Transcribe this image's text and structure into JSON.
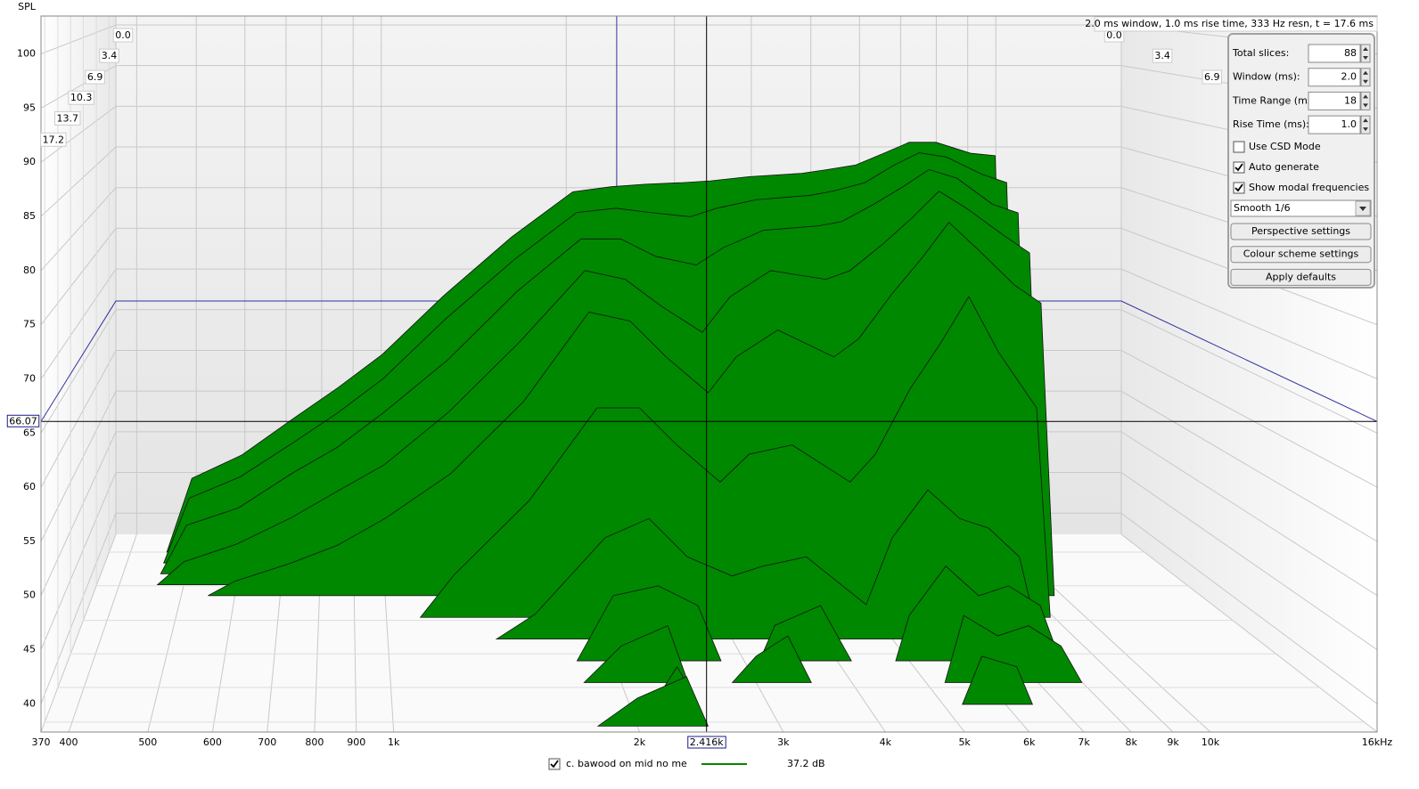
{
  "chart_data": {
    "type": "waterfall",
    "y_label": "SPL",
    "info": "2.0 ms window, 1.0 ms rise time,  333 Hz resn, t = 17.6 ms",
    "xscale": "log",
    "xlim": [
      370,
      16000
    ],
    "xticks": [
      370,
      400,
      500,
      600,
      700,
      800,
      900,
      {
        "value": 1000,
        "label": "1k"
      },
      {
        "value": 2000,
        "label": "2k"
      },
      {
        "value": 3000,
        "label": "3k"
      },
      {
        "value": 4000,
        "label": "4k"
      },
      {
        "value": 5000,
        "label": "5k"
      },
      {
        "value": 6000,
        "label": "6k"
      },
      {
        "value": 7000,
        "label": "7k"
      },
      {
        "value": 8000,
        "label": "8k"
      },
      {
        "value": 9000,
        "label": "9k"
      },
      {
        "value": 10000,
        "label": "10k"
      },
      {
        "value": 16000,
        "label": "16kHz"
      }
    ],
    "ylim": [
      37.4,
      103.5
    ],
    "yticks": [
      40,
      45,
      50,
      55,
      60,
      65,
      70,
      75,
      80,
      85,
      90,
      95,
      100
    ],
    "tlim": [
      0,
      17.6
    ],
    "tticks": [
      {
        "value": 0,
        "label": "0.0"
      },
      3.4,
      6.9,
      10.3,
      13.7,
      17.2
    ],
    "grid": true,
    "cursor": {
      "x": {
        "value": 2416,
        "label": "2.416k"
      },
      "y": 66.07
    },
    "x": [
      500,
      600,
      725,
      850,
      1000,
      1250,
      1600,
      2000,
      2300,
      2600,
      3000,
      3300,
      3800,
      4600,
      5000,
      5600,
      6200,
      6800,
      7500,
      8500,
      9300
    ],
    "series": [
      {
        "name": "c. bawood on mid no me",
        "color": "#008800",
        "visible": true,
        "level": {
          "value": 37.2,
          "label": "37.2 dB"
        },
        "slices": [
          {
            "t": 0,
            "values": [
              46.2,
              49,
              53.4,
              57,
              61,
              68,
              75,
              80.4,
              81,
              81.3,
              81.5,
              81.7,
              82.2,
              82.6,
              83,
              83.6,
              85,
              86.3,
              86.3,
              85,
              84.7
            ]
          },
          {
            "t": 1.1,
            "values": [
              45,
              47.5,
              51.5,
              55,
              59,
              66,
              73,
              78.5,
              79,
              78.5,
              78,
              79,
              80,
              80.5,
              81,
              82,
              84,
              85.5,
              85,
              83,
              82
            ]
          },
          {
            "t": 2.2,
            "values": [
              43,
              45,
              49,
              52,
              56,
              62,
              70,
              76,
              76,
              74,
              73,
              75,
              77,
              77.5,
              78,
              80,
              82,
              84,
              83,
              80,
              79
            ]
          },
          {
            "t": 3.3,
            "values": [
              40,
              42,
              45,
              48,
              51,
              57,
              65,
              73,
              72,
              69,
              66,
              70,
              73,
              72,
              73,
              76,
              79,
              82,
              80,
              77,
              75
            ]
          },
          {
            "t": 4.4,
            "values": [
              null,
              39,
              41,
              43,
              46,
              51,
              59,
              69,
              68,
              64,
              60,
              64,
              67,
              64,
              66,
              71,
              75,
              79,
              76,
              72,
              70
            ]
          },
          {
            "t": 6.6,
            "values": [
              null,
              null,
              null,
              null,
              null,
              42,
              50,
              60,
              60,
              56,
              52,
              55,
              56,
              52,
              55,
              62,
              67,
              72,
              66,
              60,
              null
            ]
          },
          {
            "t": 8.8,
            "values": [
              null,
              null,
              null,
              null,
              null,
              null,
              40,
              48,
              50,
              46,
              44,
              45,
              46,
              41,
              48,
              53,
              50,
              49,
              46,
              null,
              null
            ]
          },
          {
            "t": 11,
            "values": [
              null,
              null,
              null,
              null,
              null,
              null,
              null,
              44,
              45,
              43,
              null,
              41,
              43,
              null,
              42,
              47,
              44,
              45,
              43,
              null,
              null
            ]
          },
          {
            "t": 13.2,
            "values": [
              null,
              null,
              null,
              null,
              null,
              null,
              null,
              41,
              43,
              null,
              40,
              42,
              null,
              null,
              null,
              44,
              42,
              43,
              41,
              null,
              null
            ]
          },
          {
            "t": 15.4,
            "values": [
              null,
              null,
              null,
              null,
              null,
              null,
              null,
              null,
              41,
              null,
              null,
              null,
              null,
              null,
              null,
              42,
              41,
              null,
              null,
              null,
              null
            ]
          },
          {
            "t": 17.6,
            "values": [
              null,
              null,
              null,
              null,
              null,
              null,
              null,
              40,
              42,
              null,
              null,
              null,
              null,
              null,
              null,
              null,
              null,
              null,
              null,
              null,
              null
            ]
          }
        ]
      }
    ]
  },
  "controls": {
    "fields": [
      {
        "label": "Total slices:",
        "value": "88"
      },
      {
        "label": "Window (ms):",
        "value": "2.0"
      },
      {
        "label": "Time Range (ms):",
        "value": "18"
      },
      {
        "label": "Rise Time (ms):",
        "value": "1.0"
      }
    ],
    "checkboxes": [
      {
        "label": "Use CSD Mode",
        "checked": false
      },
      {
        "label": "Auto generate",
        "checked": true
      },
      {
        "label": "Show modal frequencies",
        "checked": true
      }
    ],
    "dropdown": "Smooth 1/6",
    "buttons": [
      "Perspective settings",
      "Colour scheme settings",
      "Apply defaults"
    ]
  }
}
